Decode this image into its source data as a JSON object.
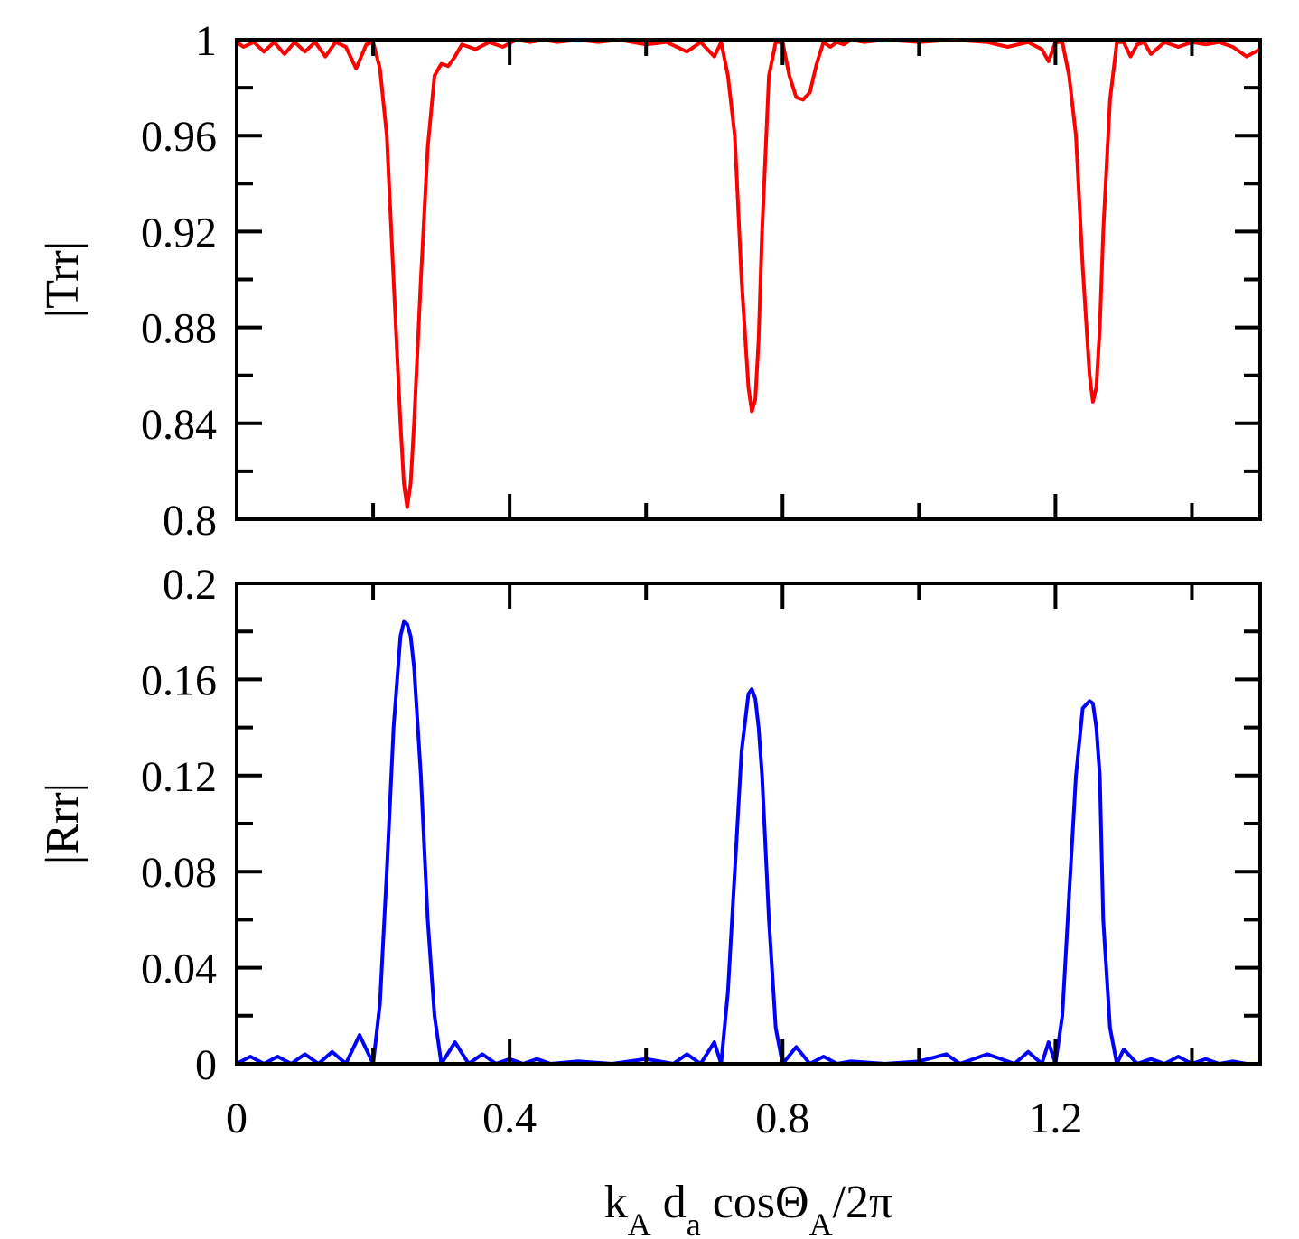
{
  "chart_data": [
    {
      "type": "line",
      "ylabel": "|Trr|",
      "xlim": [
        0,
        1.5
      ],
      "ylim": [
        0.8,
        1.0
      ],
      "xticks": [
        0,
        0.4,
        0.8,
        1.2
      ],
      "yticks": [
        0.8,
        0.84,
        0.88,
        0.92,
        0.96,
        1.0
      ],
      "ytick_labels": [
        "0.8",
        "0.84",
        "0.88",
        "0.92",
        "0.96",
        "1"
      ],
      "grid": false,
      "series": [
        {
          "color": "#ff0000",
          "x": [
            0,
            0.01,
            0.025,
            0.04,
            0.055,
            0.07,
            0.085,
            0.1,
            0.115,
            0.13,
            0.145,
            0.16,
            0.175,
            0.19,
            0.2,
            0.21,
            0.22,
            0.23,
            0.24,
            0.245,
            0.25,
            0.255,
            0.26,
            0.27,
            0.28,
            0.29,
            0.3,
            0.31,
            0.32,
            0.33,
            0.35,
            0.37,
            0.39,
            0.41,
            0.43,
            0.45,
            0.47,
            0.5,
            0.53,
            0.56,
            0.6,
            0.63,
            0.66,
            0.68,
            0.7,
            0.71,
            0.72,
            0.73,
            0.74,
            0.75,
            0.755,
            0.76,
            0.765,
            0.77,
            0.78,
            0.79,
            0.8,
            0.81,
            0.82,
            0.83,
            0.84,
            0.85,
            0.86,
            0.87,
            0.88,
            0.89,
            0.9,
            0.92,
            0.95,
            1.0,
            1.05,
            1.1,
            1.13,
            1.16,
            1.18,
            1.19,
            1.2,
            1.21,
            1.22,
            1.23,
            1.24,
            1.25,
            1.255,
            1.26,
            1.265,
            1.27,
            1.28,
            1.29,
            1.3,
            1.31,
            1.32,
            1.33,
            1.34,
            1.36,
            1.38,
            1.4,
            1.42,
            1.44,
            1.46,
            1.48,
            1.5
          ],
          "y": [
            0.999,
            0.997,
            0.999,
            0.995,
            0.999,
            0.994,
            0.999,
            0.995,
            0.999,
            0.993,
            0.999,
            0.997,
            0.988,
            0.998,
            0.999,
            0.988,
            0.96,
            0.9,
            0.84,
            0.815,
            0.805,
            0.815,
            0.84,
            0.9,
            0.955,
            0.985,
            0.99,
            0.989,
            0.993,
            0.998,
            0.996,
            0.999,
            0.997,
            1.0,
            0.999,
            1.0,
            0.999,
            1.0,
            0.999,
            1.0,
            0.998,
            0.999,
            0.995,
            0.999,
            0.993,
            0.999,
            0.985,
            0.96,
            0.9,
            0.855,
            0.845,
            0.85,
            0.875,
            0.92,
            0.985,
            0.999,
            0.999,
            0.985,
            0.976,
            0.975,
            0.978,
            0.99,
            0.999,
            0.997,
            0.999,
            0.998,
            1.0,
            0.999,
            1.0,
            0.999,
            1.0,
            0.999,
            0.997,
            0.999,
            0.996,
            0.991,
            0.999,
            0.999,
            0.985,
            0.96,
            0.905,
            0.86,
            0.849,
            0.855,
            0.88,
            0.92,
            0.975,
            0.999,
            0.999,
            0.993,
            0.998,
            0.999,
            0.994,
            0.999,
            0.997,
            0.999,
            0.998,
            0.999,
            0.997,
            0.993,
            0.996
          ]
        }
      ]
    },
    {
      "type": "line",
      "ylabel": "|Rrr|",
      "xlabel": "k_A d_a cosΘ_A/2π",
      "xlim": [
        0,
        1.5
      ],
      "ylim": [
        0,
        0.2
      ],
      "xticks": [
        0,
        0.4,
        0.8,
        1.2
      ],
      "xtick_labels": [
        "0",
        "0.4",
        "0.8",
        "1.2"
      ],
      "yticks": [
        0,
        0.04,
        0.08,
        0.12,
        0.16,
        0.2
      ],
      "ytick_labels": [
        "0",
        "0.04",
        "0.08",
        "0.12",
        "0.16",
        "0.2"
      ],
      "grid": false,
      "series": [
        {
          "color": "#0000ff",
          "x": [
            0,
            0.02,
            0.04,
            0.06,
            0.08,
            0.1,
            0.12,
            0.14,
            0.16,
            0.18,
            0.2,
            0.21,
            0.22,
            0.23,
            0.24,
            0.245,
            0.25,
            0.255,
            0.26,
            0.27,
            0.28,
            0.29,
            0.3,
            0.32,
            0.34,
            0.36,
            0.38,
            0.4,
            0.42,
            0.44,
            0.46,
            0.5,
            0.55,
            0.6,
            0.64,
            0.66,
            0.68,
            0.7,
            0.71,
            0.72,
            0.73,
            0.74,
            0.75,
            0.755,
            0.76,
            0.765,
            0.77,
            0.78,
            0.79,
            0.8,
            0.82,
            0.84,
            0.86,
            0.88,
            0.9,
            0.95,
            1.0,
            1.04,
            1.06,
            1.1,
            1.14,
            1.16,
            1.18,
            1.19,
            1.2,
            1.21,
            1.22,
            1.23,
            1.24,
            1.25,
            1.255,
            1.26,
            1.265,
            1.27,
            1.28,
            1.29,
            1.3,
            1.32,
            1.34,
            1.36,
            1.38,
            1.4,
            1.42,
            1.44,
            1.46,
            1.48,
            1.5
          ],
          "y": [
            0.0,
            0.003,
            0.0,
            0.003,
            0.0,
            0.004,
            0.0,
            0.005,
            0.0,
            0.012,
            0.0,
            0.025,
            0.08,
            0.14,
            0.178,
            0.184,
            0.183,
            0.178,
            0.165,
            0.12,
            0.06,
            0.02,
            0.0,
            0.009,
            0.0,
            0.004,
            0.0,
            0.002,
            0.0,
            0.002,
            0.0,
            0.001,
            0.0,
            0.002,
            0.0,
            0.004,
            0.0,
            0.009,
            0.0,
            0.03,
            0.08,
            0.13,
            0.154,
            0.156,
            0.152,
            0.14,
            0.12,
            0.06,
            0.015,
            0.0,
            0.007,
            0.0,
            0.003,
            0.0,
            0.001,
            0.0,
            0.001,
            0.004,
            0.0,
            0.004,
            0.0,
            0.005,
            0.0,
            0.009,
            0.0,
            0.02,
            0.07,
            0.12,
            0.148,
            0.151,
            0.15,
            0.14,
            0.12,
            0.06,
            0.015,
            0.0,
            0.006,
            0.0,
            0.002,
            0.0,
            0.003,
            0.0,
            0.002,
            0.0,
            0.001,
            0.0,
            0.0
          ]
        }
      ]
    }
  ]
}
